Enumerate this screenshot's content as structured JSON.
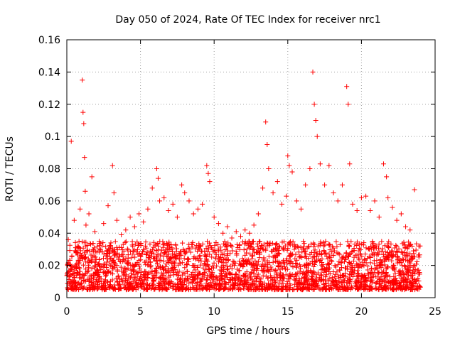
{
  "chart_data": {
    "type": "scatter",
    "title": "Day 050 of 2024, Rate Of TEC Index for receiver nrc1",
    "xlabel": "GPS time / hours",
    "ylabel": "ROTI / TECUs",
    "xlim": [
      0,
      25
    ],
    "ylim": [
      0,
      0.16
    ],
    "xticks": [
      0,
      5,
      10,
      15,
      20,
      25
    ],
    "xtick_labels": [
      "0",
      "5",
      "10",
      "15",
      "20",
      "25"
    ],
    "yticks": [
      0,
      0.02,
      0.04,
      0.06,
      0.08,
      0.1,
      0.12,
      0.14,
      0.16
    ],
    "ytick_labels": [
      "0",
      "0.02",
      "0.04",
      "0.06",
      "0.08",
      "0.1",
      "0.12",
      "0.14",
      "0.16"
    ],
    "grid": true,
    "marker": "+",
    "marker_color": "#ff0000",
    "series": [
      {
        "name": "ROTI",
        "x": [
          0.1,
          0.3,
          0.5,
          0.7,
          0.9,
          1.05,
          1.1,
          1.15,
          1.2,
          1.25,
          1.3,
          1.5,
          1.7,
          1.9,
          2.2,
          2.5,
          2.8,
          3.1,
          3.2,
          3.4,
          3.7,
          4.0,
          4.3,
          4.6,
          4.9,
          5.2,
          5.5,
          5.8,
          6.1,
          6.2,
          6.3,
          6.6,
          6.9,
          7.2,
          7.5,
          7.8,
          8.0,
          8.3,
          8.6,
          8.9,
          9.2,
          9.5,
          9.6,
          9.7,
          10.0,
          10.3,
          10.6,
          10.9,
          11.2,
          11.5,
          11.8,
          12.1,
          12.4,
          12.7,
          13.0,
          13.3,
          13.5,
          13.6,
          13.7,
          14.0,
          14.3,
          14.6,
          14.9,
          15.0,
          15.1,
          15.3,
          15.6,
          15.9,
          16.2,
          16.5,
          16.7,
          16.8,
          16.9,
          17.0,
          17.2,
          17.5,
          17.8,
          18.1,
          18.4,
          18.7,
          19.0,
          19.1,
          19.2,
          19.4,
          19.7,
          20.0,
          20.3,
          20.6,
          20.9,
          21.2,
          21.5,
          21.7,
          21.8,
          22.1,
          22.4,
          22.7,
          23.0,
          23.3,
          23.6,
          23.9
        ],
        "y": [
          0.036,
          0.097,
          0.048,
          0.032,
          0.055,
          0.135,
          0.115,
          0.108,
          0.087,
          0.066,
          0.045,
          0.052,
          0.075,
          0.041,
          0.035,
          0.046,
          0.057,
          0.082,
          0.065,
          0.048,
          0.039,
          0.042,
          0.05,
          0.044,
          0.052,
          0.047,
          0.055,
          0.068,
          0.08,
          0.074,
          0.06,
          0.062,
          0.054,
          0.058,
          0.05,
          0.07,
          0.065,
          0.06,
          0.052,
          0.055,
          0.058,
          0.082,
          0.077,
          0.072,
          0.05,
          0.046,
          0.04,
          0.044,
          0.037,
          0.041,
          0.038,
          0.042,
          0.04,
          0.045,
          0.052,
          0.068,
          0.109,
          0.095,
          0.08,
          0.065,
          0.072,
          0.058,
          0.063,
          0.088,
          0.082,
          0.078,
          0.06,
          0.055,
          0.07,
          0.08,
          0.14,
          0.12,
          0.11,
          0.1,
          0.083,
          0.07,
          0.082,
          0.065,
          0.06,
          0.07,
          0.131,
          0.12,
          0.083,
          0.058,
          0.054,
          0.062,
          0.063,
          0.054,
          0.06,
          0.05,
          0.083,
          0.075,
          0.062,
          0.056,
          0.048,
          0.052,
          0.044,
          0.042,
          0.067,
          0.032
        ]
      }
    ],
    "baseline_band": [
      0.005,
      0.035
    ]
  }
}
